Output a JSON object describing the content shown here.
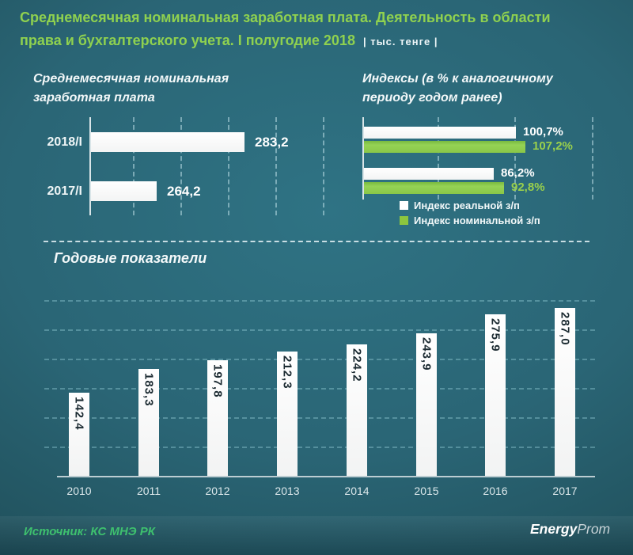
{
  "header": {
    "title_line1": "Среднемесячная номинальная заработная плата. Деятельность в области",
    "title_line2": "права и бухгалтерского учета. I полугодие 2018",
    "unit_badge": "| тыс. тенге |"
  },
  "colors": {
    "title_green": "#8fd14f",
    "bar_green": "#8cc63e",
    "bar_white": "#ffffff",
    "source_green": "#3ec06e",
    "background_teal": "#2a6575"
  },
  "chart_data": [
    {
      "id": "monthly-wage",
      "type": "bar",
      "orientation": "horizontal",
      "title": "Среднемесячная  номинальная заработная плата",
      "categories": [
        "2018/I",
        "2017/I"
      ],
      "values": [
        283.2,
        264.2
      ],
      "value_labels": [
        "283,2",
        "264,2"
      ],
      "bar_color": "#ffffff",
      "axis": {
        "xmin": 250,
        "xmax": 315,
        "grid_step": 10,
        "grid": true
      },
      "legend_position": "none"
    },
    {
      "id": "indices",
      "type": "bar",
      "orientation": "horizontal",
      "title": "Индексы  (в % к аналогичному периоду годом ранее)",
      "groups": 2,
      "series": [
        {
          "name": "Индекс реальной з/п",
          "color": "#ffffff",
          "values": [
            100.7,
            86.2
          ],
          "value_labels": [
            "100,7%",
            "86,2%"
          ]
        },
        {
          "name": "Индекс номинальной з/п",
          "color": "#8cc63e",
          "values": [
            107.2,
            92.8
          ],
          "value_labels": [
            "107,2%",
            "92,8%"
          ]
        }
      ],
      "axis": {
        "xmin": 0,
        "xmax": 160,
        "grid_step": 50,
        "grid": true
      },
      "legend_position": "bottom"
    },
    {
      "id": "annual",
      "type": "bar",
      "orientation": "vertical",
      "title": "Годовые показатели",
      "categories": [
        "2010",
        "2011",
        "2012",
        "2013",
        "2014",
        "2015",
        "2016",
        "2017"
      ],
      "values": [
        142.4,
        183.3,
        197.8,
        212.3,
        224.2,
        243.9,
        275.9,
        287.0
      ],
      "value_labels": [
        "142,4",
        "183,3",
        "197,8",
        "212,3",
        "224,2",
        "243,9",
        "275,9",
        "287,0"
      ],
      "bar_color": "#ffffff",
      "axis": {
        "ymin": 0,
        "ymax": 311,
        "grid_step": 50,
        "grid": true
      },
      "legend_position": "none"
    }
  ],
  "footer": {
    "source": "Источник: КС МНЭ РК",
    "logo": {
      "energy": "Energy",
      "prom": "Prom"
    }
  }
}
